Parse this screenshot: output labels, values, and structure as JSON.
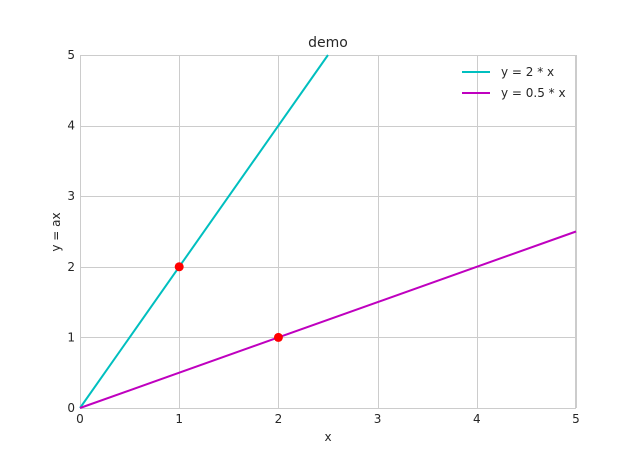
{
  "chart_data": {
    "type": "line",
    "title": "demo",
    "xlabel": "x",
    "ylabel": "y = ax",
    "xlim": [
      0,
      5
    ],
    "ylim": [
      0,
      5
    ],
    "xticks": [
      0,
      1,
      2,
      3,
      4,
      5
    ],
    "yticks": [
      0,
      1,
      2,
      3,
      4,
      5
    ],
    "grid": true,
    "legend_position": "top-right",
    "series": [
      {
        "name": "y = 2 * x",
        "x": [
          0,
          2.5
        ],
        "y": [
          0,
          5
        ],
        "color": "#00bfbf"
      },
      {
        "name": "y = 0.5 * x",
        "x": [
          0,
          5
        ],
        "y": [
          0,
          2.5
        ],
        "color": "#bf00bf"
      }
    ],
    "markers": [
      {
        "x": 1,
        "y": 2,
        "color": "#ff0000"
      },
      {
        "x": 2,
        "y": 1,
        "color": "#ff0000"
      }
    ]
  }
}
